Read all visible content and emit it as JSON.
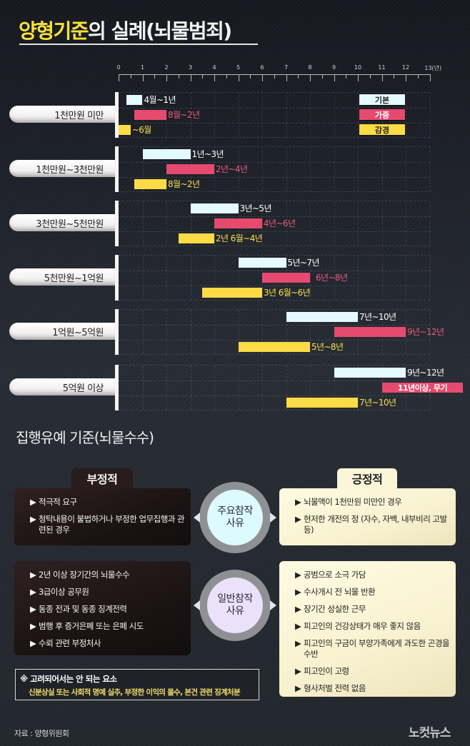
{
  "header": {
    "title_highlight": "양형기준",
    "title_rest": "의 실례(뇌물범죄)"
  },
  "axis": {
    "ticks": [
      "0",
      "1",
      "2",
      "3",
      "4",
      "5",
      "6",
      "7",
      "8",
      "9",
      "10",
      "11",
      "12",
      "13(년)"
    ]
  },
  "legend": {
    "basic": "기본",
    "aggravated": "가중",
    "mitigated": "감경"
  },
  "colors": {
    "basic": "#e3faff",
    "aggravated": "#e64b6f",
    "mitigated": "#fbdc46",
    "title_highlight": "#f7e13a"
  },
  "groups": [
    {
      "label": "1천만원 미만",
      "basic": "4월~1년",
      "aggravated": "8월~2년",
      "mitigated": "~6월"
    },
    {
      "label": "1천만원~3천만원",
      "basic": "1년~3년",
      "aggravated": "2년~4년",
      "mitigated": "8월~2년"
    },
    {
      "label": "3천만원~5천만원",
      "basic": "3년~5년",
      "aggravated": "4년~6년",
      "mitigated": "2년 6월~4년"
    },
    {
      "label": "5천만원~1억원",
      "basic": "5년~7년",
      "aggravated": "6년~8년",
      "mitigated": "3년 6월~6년"
    },
    {
      "label": "1억원~5억원",
      "basic": "7년~10년",
      "aggravated": "9년~12년",
      "mitigated": "5년~8년"
    },
    {
      "label": "5억원 이상",
      "basic": "9년~12년",
      "aggravated": "11년이상, 무기",
      "mitigated": "7년~10년"
    }
  ],
  "chart_data": {
    "type": "bar",
    "orientation": "horizontal-range",
    "title": "양형기준의 실례(뇌물범죄)",
    "xlabel": "년",
    "xlim": [
      0,
      13
    ],
    "xticks": [
      0,
      1,
      2,
      3,
      4,
      5,
      6,
      7,
      8,
      9,
      10,
      11,
      12,
      13
    ],
    "categories": [
      "1천만원 미만",
      "1천만원~3천만원",
      "3천만원~5천만원",
      "5천만원~1억원",
      "1억원~5억원",
      "5억원 이상"
    ],
    "series": [
      {
        "name": "기본",
        "color": "#e3faff",
        "ranges": [
          [
            0.33,
            1
          ],
          [
            1,
            3
          ],
          [
            3,
            5
          ],
          [
            5,
            7
          ],
          [
            7,
            10
          ],
          [
            9,
            12
          ]
        ],
        "labels": [
          "4월~1년",
          "1년~3년",
          "3년~5년",
          "5년~7년",
          "7년~10년",
          "9년~12년"
        ]
      },
      {
        "name": "가중",
        "color": "#e64b6f",
        "ranges": [
          [
            0.67,
            2
          ],
          [
            2,
            4
          ],
          [
            4,
            6
          ],
          [
            6,
            8
          ],
          [
            9,
            12
          ],
          [
            11,
            14.4
          ]
        ],
        "labels": [
          "8월~2년",
          "2년~4년",
          "4년~6년",
          "6년~8년",
          "9년~12년",
          "11년이상, 무기"
        ]
      },
      {
        "name": "감경",
        "color": "#fbdc46",
        "ranges": [
          [
            0,
            0.5
          ],
          [
            0.67,
            2
          ],
          [
            2.5,
            4
          ],
          [
            3.5,
            6
          ],
          [
            5,
            8
          ],
          [
            7,
            10
          ]
        ],
        "labels": [
          "~6월",
          "8월~2년",
          "2년 6월~4년",
          "3년 6월~6년",
          "5년~8년",
          "7년~10년"
        ]
      }
    ],
    "legend_position": "top-right",
    "grid": true
  },
  "probation": {
    "title": "집행유예 기준(뇌물수수)",
    "negative_tab": "부정적",
    "positive_tab": "긍정적",
    "major_factor": [
      "주요참작",
      "사유"
    ],
    "general_factor": [
      "일반참작",
      "사유"
    ],
    "bullet": "▶",
    "major_negative": [
      "적극적 요구",
      "청탁내용이 불법하거나 부정한 업무집행과 관련된 경우"
    ],
    "major_positive": [
      "뇌물액이 1천만원 미만인 경우",
      "현저한 개전의 정 (자수, 자백, 내부비리 고발 등)"
    ],
    "general_negative": [
      "2년 이상 장기간의 뇌물수수",
      "3급이상 공무원",
      "동종 전과 및 동종 징계전력",
      "범행 후 증거은폐 또는 은폐 시도",
      "수뢰 관련 부정처사"
    ],
    "general_positive": [
      "공범으로 소극 가담",
      "수사개시 전 뇌물 반환",
      "장기간 성실한 근무",
      "피고인의 건강상태가 매우 좋지 않음",
      "피고인의 구금이 부양가족에게 과도한 곤경을 수반",
      "피고인이 고령",
      "형사처벌 전력 없음"
    ]
  },
  "note": {
    "heading": "※ 고려되어서는 안 되는 요소",
    "body": "신분상실 또는 사회적 명예 실추, 부정한 이익의 몰수, 본건 관련 징계처분"
  },
  "footer": {
    "source": "자료 : 양형위원회",
    "logo": "노컷뉴스"
  }
}
